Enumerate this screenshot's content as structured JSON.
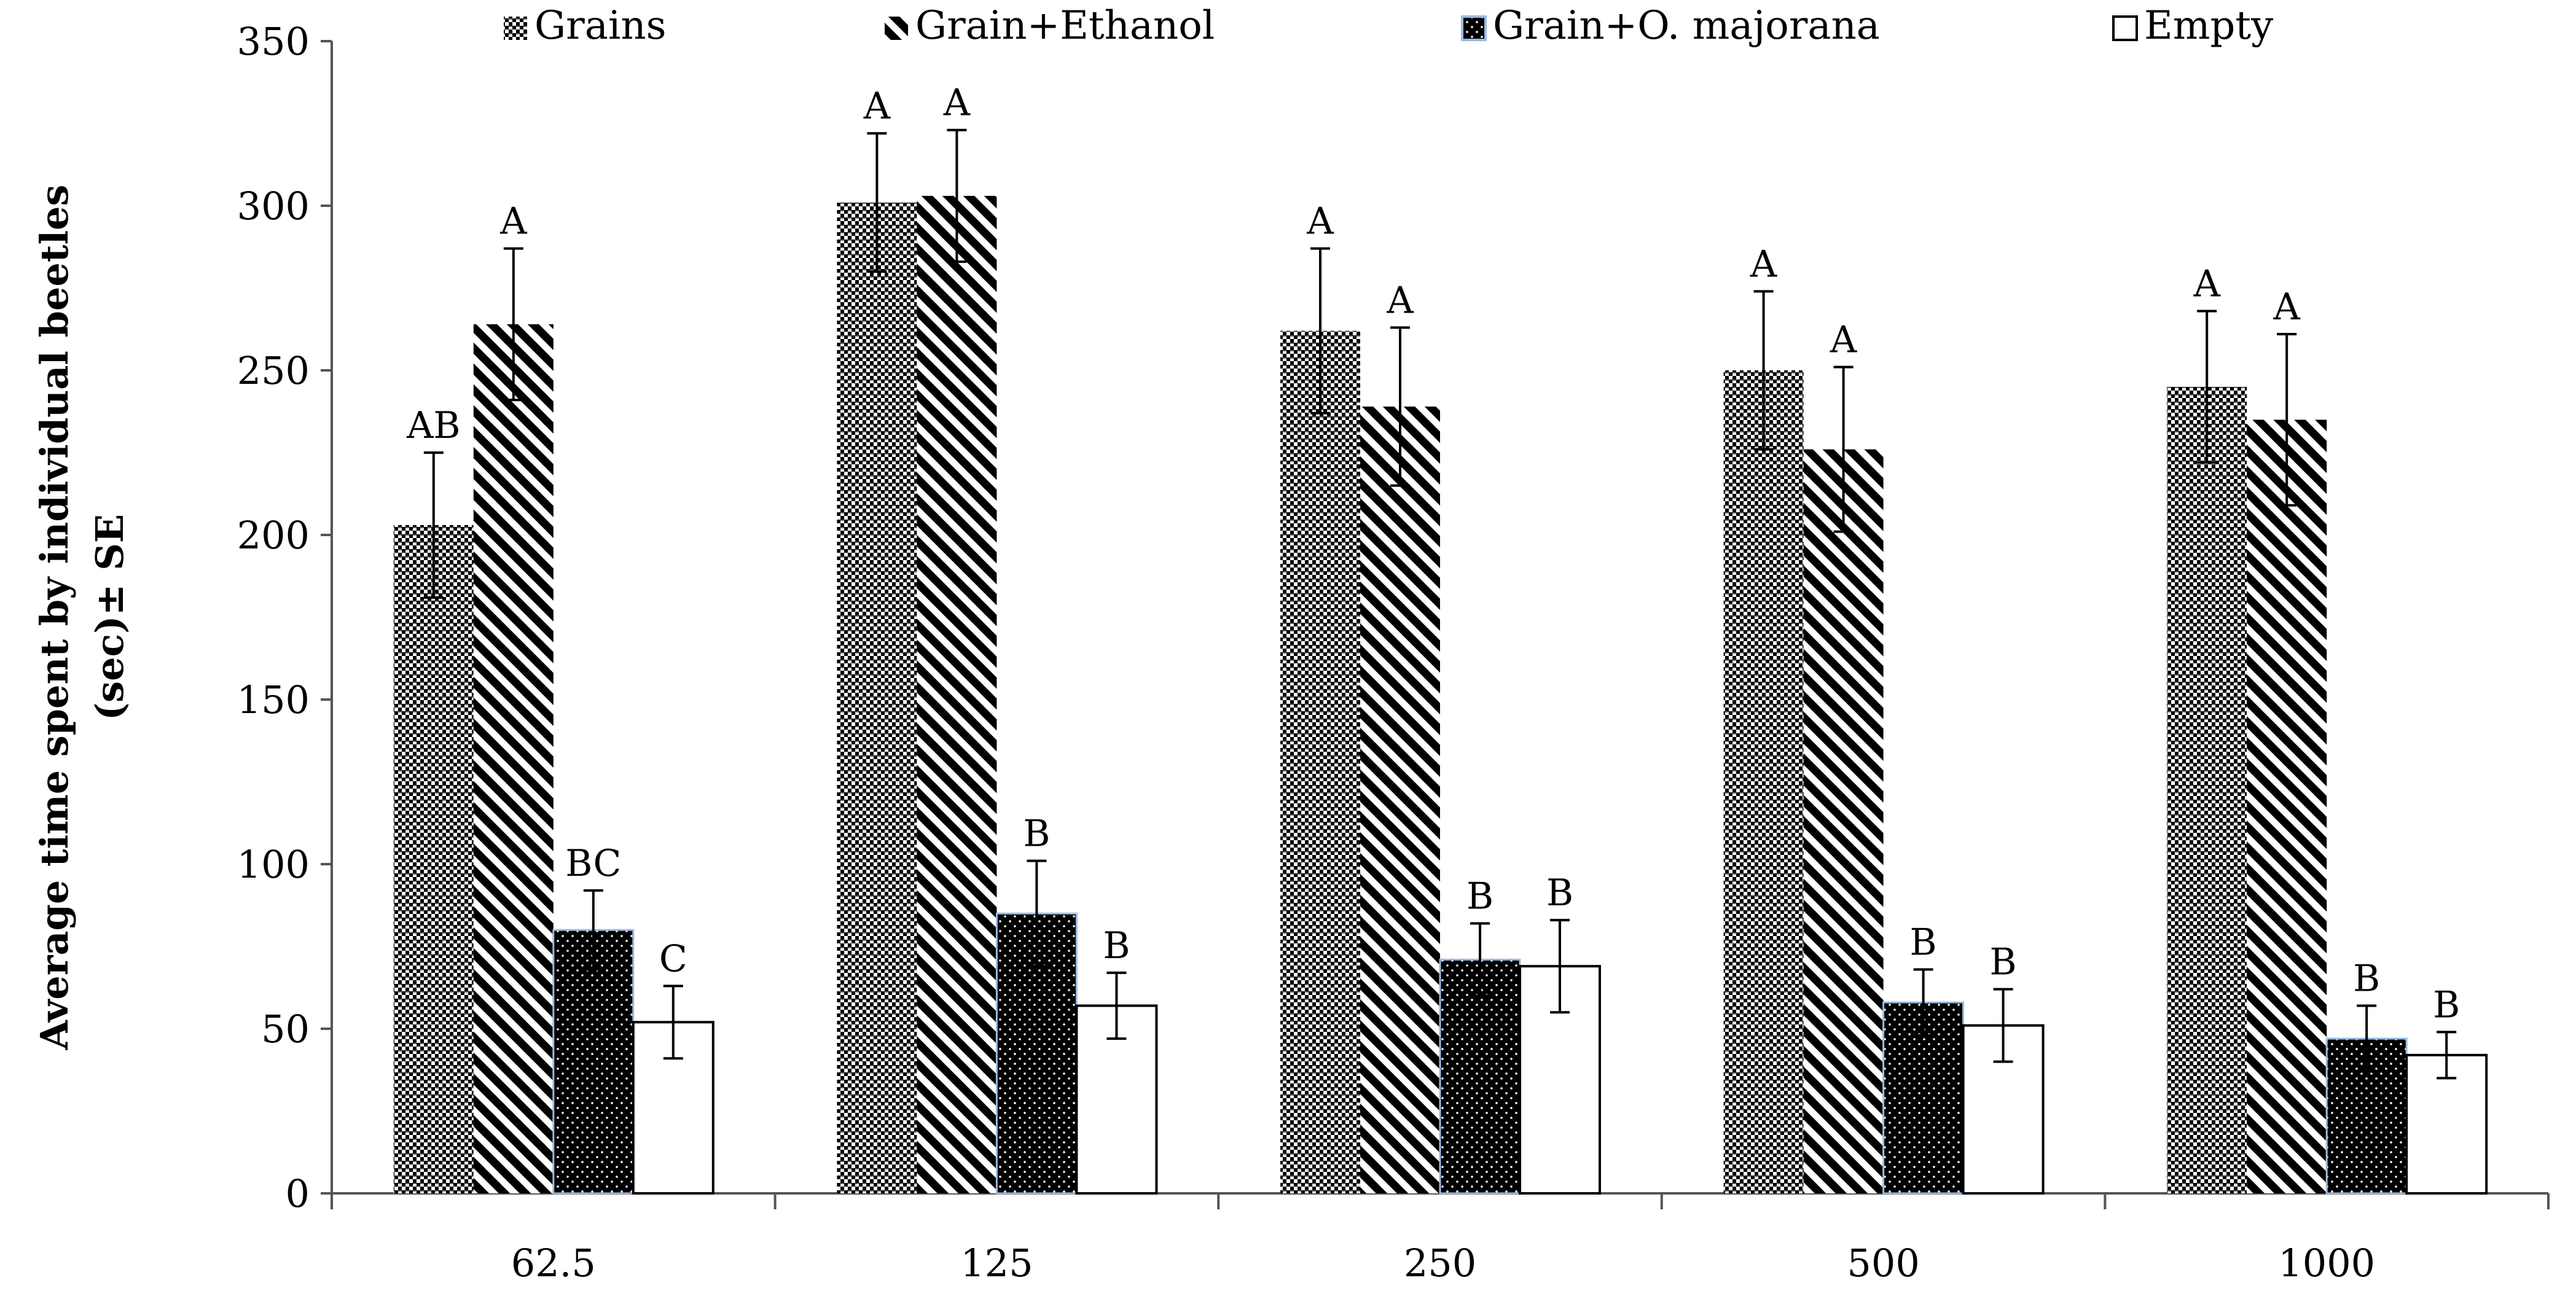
{
  "chart_data": {
    "type": "bar",
    "title": "",
    "xlabel": "",
    "ylabel": "Average time spent by individual beetles (sec)± SE",
    "ylabel_lines": [
      "Average time spent by individual beetles",
      "(sec)± SE"
    ],
    "ylim": [
      0,
      350
    ],
    "yticks": [
      0,
      50,
      100,
      150,
      200,
      250,
      300,
      350
    ],
    "categories": [
      "62.5",
      "125",
      "250",
      "500",
      "1000"
    ],
    "legend_position": "top",
    "series": [
      {
        "name": "Grains",
        "pattern": "checker",
        "values": [
          203,
          301,
          262,
          250,
          245
        ],
        "errors": [
          22,
          21,
          25,
          24,
          23
        ],
        "labels": [
          "AB",
          "A",
          "A",
          "A",
          "A"
        ]
      },
      {
        "name": "Grain+Ethanol",
        "pattern": "diagonal",
        "values": [
          264,
          303,
          239,
          226,
          235
        ],
        "errors": [
          23,
          20,
          24,
          25,
          26
        ],
        "labels": [
          "A",
          "A",
          "A",
          "A",
          "A"
        ]
      },
      {
        "name": "Grain+O. majorana",
        "pattern": "dots",
        "values": [
          80,
          85,
          71,
          58,
          47
        ],
        "errors": [
          12,
          16,
          11,
          10,
          10
        ],
        "labels": [
          "BC",
          "B",
          "B",
          "B",
          "B"
        ]
      },
      {
        "name": "Empty",
        "pattern": "empty",
        "values": [
          52,
          57,
          69,
          51,
          42
        ],
        "errors": [
          11,
          10,
          14,
          11,
          7
        ],
        "labels": [
          "C",
          "B",
          "B",
          "B",
          "B"
        ]
      }
    ]
  }
}
